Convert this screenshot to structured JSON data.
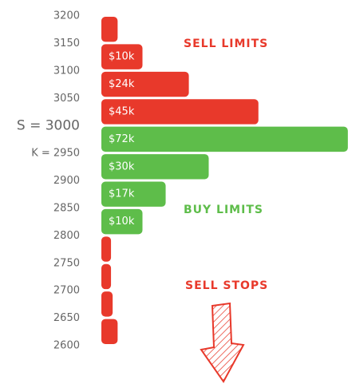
{
  "chart_data": {
    "type": "hbar-histogram",
    "bins": [
      3200,
      3150,
      3100,
      3050,
      3000,
      2950,
      2900,
      2850,
      2800,
      2750,
      2700,
      2650,
      2600
    ],
    "values": [
      2.5,
      10,
      24,
      45,
      72,
      30,
      17,
      10,
      0.5,
      0.5,
      1,
      2.5
    ],
    "value_labels": [
      null,
      "$10k",
      "$24k",
      "$45k",
      "$72k",
      "$30k",
      "$17k",
      "$10k",
      null,
      null,
      null,
      null
    ],
    "colors": [
      "#e8392b",
      "#e8392b",
      "#e8392b",
      "#e8392b",
      "#5ebd4a",
      "#5ebd4a",
      "#5ebd4a",
      "#5ebd4a",
      "#e8392b",
      "#e8392b",
      "#e8392b",
      "#e8392b"
    ],
    "ylim": [
      2600,
      3200
    ],
    "yticks": [
      3200,
      3150,
      3100,
      3050,
      {
        "value": 3000,
        "label": "S = 3000"
      },
      {
        "value": 2950,
        "label": "K = 2950"
      },
      2900,
      2850,
      2800,
      2750,
      2700,
      2650,
      2600
    ],
    "ytick_colors": [
      "#666",
      "#666",
      "#666",
      "#666",
      "#000",
      "#8b1a9b",
      "#666",
      "#666",
      "#666",
      "#666",
      "#666",
      "#666",
      "#666"
    ],
    "annotations": [
      {
        "text": "SELL LIMITS",
        "color": "#e8392b"
      },
      {
        "text": "BUY LIMITS",
        "color": "#5ebd4a"
      },
      {
        "text": "SELL STOPS",
        "color": "#e8392b"
      }
    ]
  }
}
